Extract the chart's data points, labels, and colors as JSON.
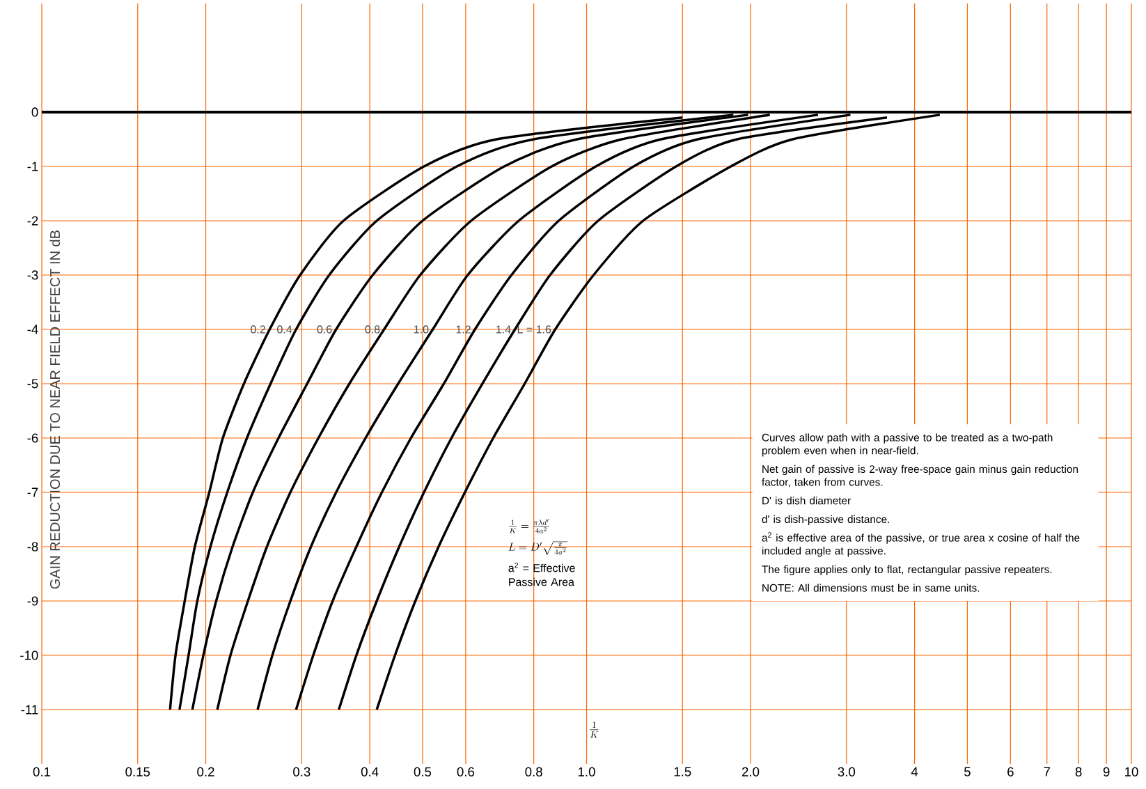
{
  "chart_data": {
    "type": "line",
    "xlabel": "\\frac{1}{K}",
    "ylabel": "GAIN REDUCTION DUE TO NEAR FIELD EFFECT IN dB",
    "log": "x",
    "grid": true,
    "marker": "none",
    "line_style": "solid",
    "xlim": [
      0.1,
      10
    ],
    "ylim": [
      -12,
      2
    ],
    "xticks": [
      0.1,
      0.15,
      0.2,
      0.3,
      0.4,
      0.5,
      0.6,
      0.8,
      {
        "value": 1,
        "label": "1.0"
      },
      1.5,
      {
        "value": 2,
        "label": "2.0"
      },
      {
        "value": 3,
        "label": "3.0"
      },
      4,
      5,
      6,
      7,
      8,
      9,
      10
    ],
    "yticks": [
      0,
      -1,
      -2,
      -3,
      -4,
      -5,
      -6,
      -7,
      -8,
      -9,
      -10,
      -11
    ],
    "ref_lines": [
      {
        "axis": "y",
        "value": 0,
        "color": "#000000"
      }
    ],
    "series": [
      {
        "name": "0.2",
        "color": "#000000",
        "x": [
          0.172,
          0.176,
          0.183,
          0.191,
          0.203,
          0.215,
          0.235,
          0.262,
          0.298,
          0.358,
          0.503,
          0.684,
          1.5
        ],
        "values": [
          -11,
          -10,
          -9,
          -8,
          -7,
          -6,
          -5,
          -4,
          -3,
          -2,
          -1,
          -0.5,
          -0.1
        ]
      },
      {
        "name": "0.4",
        "color": "#000000",
        "x": [
          0.179,
          0.186,
          0.193,
          0.204,
          0.219,
          0.238,
          0.263,
          0.293,
          0.337,
          0.412,
          0.578,
          0.8,
          1.86
        ],
        "values": [
          -11,
          -10,
          -9,
          -8,
          -7,
          -6,
          -5,
          -4,
          -3,
          -2,
          -1,
          -0.5,
          -0.05
        ]
      },
      {
        "name": "0.6",
        "color": "#000000",
        "x": [
          0.189,
          0.198,
          0.209,
          0.224,
          0.244,
          0.272,
          0.307,
          0.347,
          0.405,
          0.5,
          0.706,
          0.961,
          1.98
        ],
        "values": [
          -11,
          -10,
          -9,
          -8,
          -7,
          -6,
          -5,
          -4,
          -3,
          -2,
          -1,
          -0.5,
          -0.05
        ]
      },
      {
        "name": "0.8",
        "color": "#000000",
        "x": [
          0.21,
          0.222,
          0.239,
          0.259,
          0.286,
          0.322,
          0.367,
          0.425,
          0.495,
          0.614,
          0.863,
          1.16,
          2.17
        ],
        "values": [
          -11,
          -10,
          -9,
          -8,
          -7,
          -6,
          -5,
          -4,
          -3,
          -2,
          -1,
          -0.5,
          -0.05
        ]
      },
      {
        "name": "1.0",
        "color": "#000000",
        "x": [
          0.249,
          0.265,
          0.286,
          0.312,
          0.347,
          0.393,
          0.451,
          0.522,
          0.605,
          0.751,
          1.04,
          1.37,
          2.66
        ],
        "values": [
          -11,
          -10,
          -9,
          -8,
          -7,
          -6,
          -5,
          -4,
          -3,
          -2,
          -1,
          -0.5,
          -0.05
        ]
      },
      {
        "name": "1.2",
        "color": "#000000",
        "x": [
          0.293,
          0.315,
          0.342,
          0.378,
          0.421,
          0.476,
          0.547,
          0.624,
          0.728,
          0.889,
          1.22,
          1.6,
          3.05
        ],
        "values": [
          -11,
          -10,
          -9,
          -8,
          -7,
          -6,
          -5,
          -4,
          -3,
          -2,
          -1,
          -0.5,
          -0.05
        ]
      },
      {
        "name": "1.4",
        "color": "#000000",
        "x": [
          0.351,
          0.378,
          0.412,
          0.453,
          0.503,
          0.565,
          0.644,
          0.739,
          0.857,
          1.05,
          1.46,
          1.89,
          3.56
        ],
        "values": [
          -11,
          -10,
          -9,
          -8,
          -7,
          -6,
          -5,
          -4,
          -3,
          -2,
          -1,
          -0.5,
          -0.1
        ]
      },
      {
        "name": "L = 1.6",
        "color": "#000000",
        "x": [
          0.412,
          0.445,
          0.485,
          0.535,
          0.598,
          0.674,
          0.77,
          0.876,
          1.03,
          1.27,
          1.84,
          2.39,
          4.45
        ],
        "values": [
          -11,
          -10,
          -9,
          -8,
          -7,
          -6,
          -5,
          -4,
          -3,
          -2,
          -1,
          -0.5,
          -0.05
        ]
      }
    ],
    "annotations": [
      "\\frac{1}{K}=\\frac{\\pi\\lambda d'}{4a^{2}}",
      "L = D'\\sqrt{\\frac{\\pi}{4a^{2}}}",
      "a$^{2}$ = Effective Passive Area",
      "Curves allow path with a passive to be treated as a two-path problem even when in near-field.",
      "Net gain of passive is 2-way free-space gain minus gain reduction factor, taken from curves.",
      "D' is dish diameter",
      "d' is dish-passive distance.",
      "a$^{2}$ is effective area of the passive, or true area x cosine of half the included angle at passive.",
      "The figure applies only to flat, rectangular passive repeaters.",
      "NOTE: All dimensions must be in same units."
    ]
  }
}
